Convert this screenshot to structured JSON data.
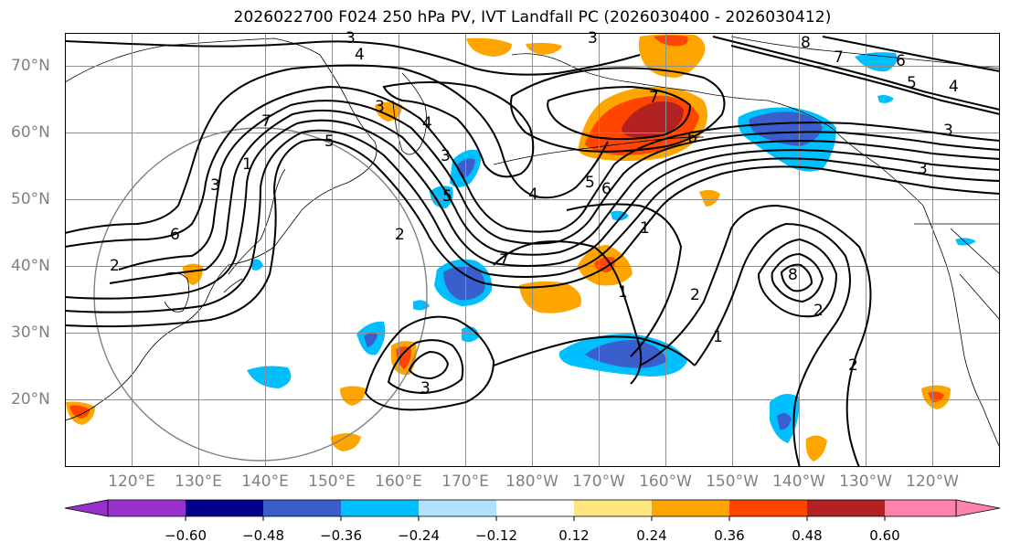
{
  "title": "2026022700 F024 250 hPa PV, IVT Landfall PC (2026030400 - 2026030412)",
  "map": {
    "lat_labels": [
      "70°N",
      "60°N",
      "50°N",
      "40°N",
      "30°N",
      "20°N"
    ],
    "lon_labels": [
      "120°E",
      "130°E",
      "140°E",
      "150°E",
      "160°E",
      "170°E",
      "180°W",
      "170°W",
      "160°W",
      "150°W",
      "140°W",
      "130°W",
      "120°W"
    ],
    "contour_labels": [
      "3",
      "4",
      "3",
      "8",
      "7",
      "6",
      "5",
      "4",
      "3",
      "7",
      "6",
      "5",
      "4",
      "3",
      "5",
      "6",
      "7",
      "2",
      "1",
      "3",
      "2",
      "1",
      "8",
      "2",
      "1",
      "2",
      "3",
      "7",
      "6",
      "5",
      "4",
      "3",
      "2",
      "3",
      "1"
    ],
    "colors": {
      "dark_blue": "#3a5fcd",
      "medium_blue": "#00bfff",
      "light_blue": "#b0e2ff",
      "yellow": "#ffe680",
      "orange": "#ffa500",
      "red_orange": "#ff4500",
      "dark_red": "#b22222"
    }
  },
  "colorbar": {
    "ticks": [
      "−0.60",
      "−0.48",
      "−0.36",
      "−0.24",
      "−0.12",
      "0.12",
      "0.24",
      "0.36",
      "0.48",
      "0.60"
    ],
    "colors": [
      "#9932cc",
      "#00008b",
      "#3a5fcd",
      "#00bfff",
      "#b0e2ff",
      "#ffffff",
      "#ffe680",
      "#ffa500",
      "#ff4500",
      "#b22222",
      "#ff82ab"
    ]
  }
}
